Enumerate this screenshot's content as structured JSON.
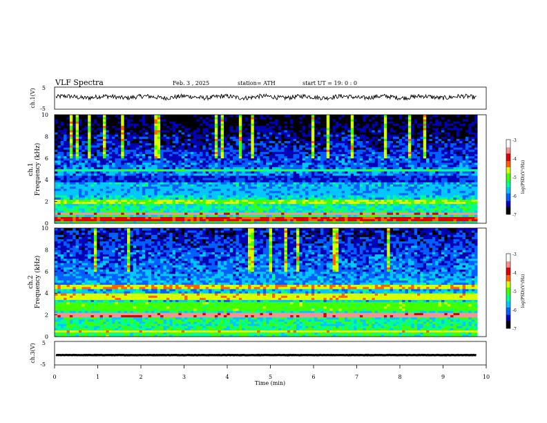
{
  "header": {
    "title": "VLF  Spectra",
    "date": "Feb. 3  , 2025",
    "station": "station= ATH",
    "start": "start  UT  =   19: 0  : 0"
  },
  "colorbar": {
    "label": "log(PSD)(V²/Hz)",
    "ticks": [
      "-3",
      "-4",
      "-5",
      "-6",
      "-7"
    ],
    "colors": [
      "#000000",
      "#0000b4",
      "#0060ff",
      "#00c8ff",
      "#00ff90",
      "#40ff00",
      "#d8ff00",
      "#ff6000",
      "#e00000",
      "#ff9090",
      "#ffffff"
    ]
  },
  "chart_data": [
    {
      "type": "line",
      "name": "ch1-waveform",
      "ylabel": "ch.1(V)",
      "ylim": [
        -5,
        5
      ],
      "yticks": [
        "5",
        "-5"
      ],
      "xlim": [
        0,
        10
      ],
      "baseline": 0.5,
      "amplitude": 1.0
    },
    {
      "type": "heatmap",
      "name": "ch1-spectrogram",
      "ylabel": "ch.1\nFrequency (kHz)",
      "ylim": [
        0,
        10
      ],
      "yticks": [
        "0",
        "2",
        "4",
        "6",
        "8",
        "10"
      ],
      "xlim": [
        0,
        9.8
      ],
      "clim": [
        -7,
        -3
      ],
      "bands": [
        {
          "f": [
            0.3,
            0.5
          ],
          "v": -4.0
        },
        {
          "f": [
            0.8,
            1.0
          ],
          "v": -3.6
        },
        {
          "f": [
            1.8,
            2.2
          ],
          "v": -4.8
        },
        {
          "f": [
            2.6,
            3.4
          ],
          "v": -5.8
        },
        {
          "f": [
            3.8,
            4.4
          ],
          "v": -6.3
        },
        {
          "f": [
            4.8,
            5.0
          ],
          "v": -5.3
        }
      ]
    },
    {
      "type": "heatmap",
      "name": "ch2-spectrogram",
      "ylabel": "ch.2\nFrequency (kHz)",
      "ylim": [
        0,
        10
      ],
      "yticks": [
        "0",
        "2",
        "4",
        "6",
        "8",
        "10"
      ],
      "xlim": [
        0,
        9.8
      ],
      "clim": [
        -7,
        -3
      ],
      "bands": [
        {
          "f": [
            0.5,
            0.7
          ],
          "v": -4.6
        },
        {
          "f": [
            1.9,
            2.2
          ],
          "v": -3.6
        },
        {
          "f": [
            2.4,
            3.2
          ],
          "v": -5.0
        },
        {
          "f": [
            3.4,
            4.0
          ],
          "v": -4.6
        },
        {
          "f": [
            4.4,
            4.8
          ],
          "v": -4.5
        }
      ]
    },
    {
      "type": "line",
      "name": "ch3-waveform",
      "ylabel": "ch.3(V)",
      "ylim": [
        -5,
        5
      ],
      "yticks": [
        "5",
        "-5"
      ],
      "xlim": [
        0,
        10
      ],
      "baseline": -0.8,
      "amplitude": 0.15,
      "xlabel": "Time  (min)",
      "xticks": [
        "0",
        "1",
        "2",
        "3",
        "4",
        "5",
        "6",
        "7",
        "8",
        "9",
        "10"
      ]
    }
  ]
}
